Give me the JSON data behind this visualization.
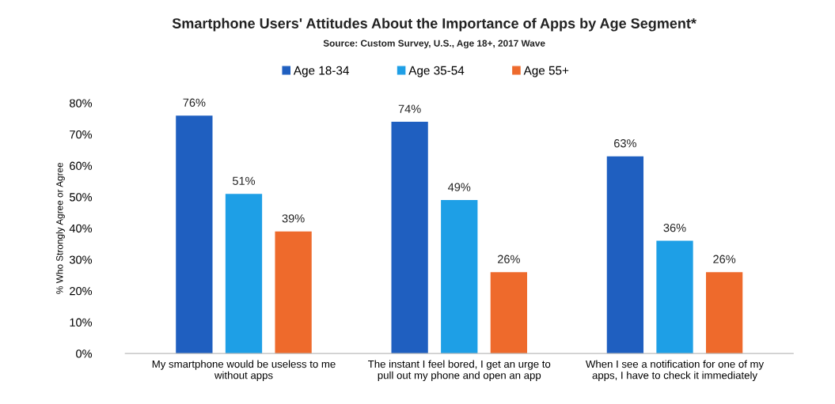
{
  "chart_data": {
    "type": "bar",
    "title": "Smartphone Users' Attitudes About the Importance of Apps by Age Segment*",
    "subtitle": "Source: Custom Survey, U.S., Age 18+, 2017 Wave",
    "ylabel": "% Who Strongly Agree or Agree",
    "categories": [
      "My smartphone would be useless to me\nwithout apps",
      "The instant I feel bored, I get an urge to\npull out my phone and open an app",
      "When I see a notification for one of my\napps, I have to check it immediately"
    ],
    "series": [
      {
        "name": "Age 18-34",
        "color": "#1f5fc0",
        "values": [
          76,
          74,
          63
        ],
        "value_labels": [
          "76%",
          "74%",
          "63%"
        ]
      },
      {
        "name": "Age 35-54",
        "color": "#1e9fe6",
        "values": [
          51,
          49,
          36
        ],
        "value_labels": [
          "51%",
          "49%",
          "36%"
        ]
      },
      {
        "name": "Age 55+",
        "color": "#ee6a2c",
        "values": [
          39,
          26,
          26
        ],
        "value_labels": [
          "39%",
          "26%",
          "26%"
        ]
      }
    ],
    "ylim": [
      0,
      80
    ],
    "yticks": [
      {
        "value": 0,
        "label": "0%"
      },
      {
        "value": 10,
        "label": "10%"
      },
      {
        "value": 20,
        "label": "20%"
      },
      {
        "value": 30,
        "label": "30%"
      },
      {
        "value": 40,
        "label": "40%"
      },
      {
        "value": 50,
        "label": "50%"
      },
      {
        "value": 60,
        "label": "60%"
      },
      {
        "value": 70,
        "label": "70%"
      },
      {
        "value": 80,
        "label": "80%"
      }
    ],
    "legend": "top",
    "grid": false
  }
}
